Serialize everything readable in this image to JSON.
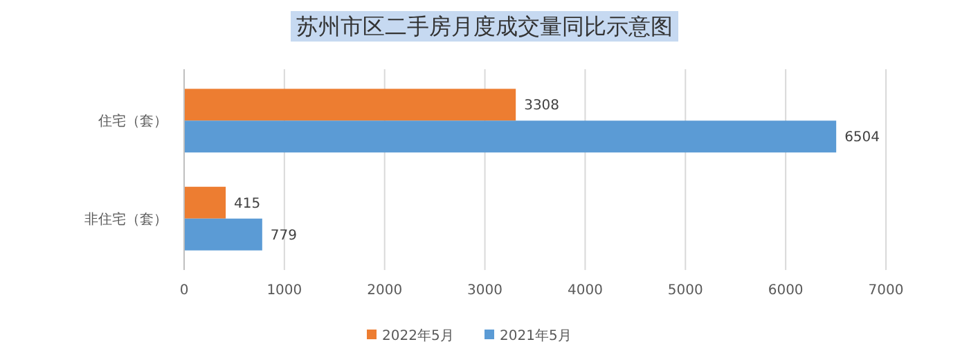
{
  "chart_data": {
    "type": "bar",
    "orientation": "horizontal",
    "title": "苏州市区二手房月度成交量同比示意图",
    "categories": [
      "住宅（套）",
      "非住宅（套）"
    ],
    "series": [
      {
        "name": "2022年5月",
        "color": "#ed7d31",
        "values": [
          3308,
          415
        ]
      },
      {
        "name": "2021年5月",
        "color": "#5b9bd5",
        "values": [
          6504,
          779
        ]
      }
    ],
    "xlim": [
      0,
      7000
    ],
    "xticks": [
      0,
      1000,
      2000,
      3000,
      4000,
      5000,
      6000,
      7000
    ],
    "grid": "x",
    "legend": "bottom",
    "data_labels": true
  }
}
